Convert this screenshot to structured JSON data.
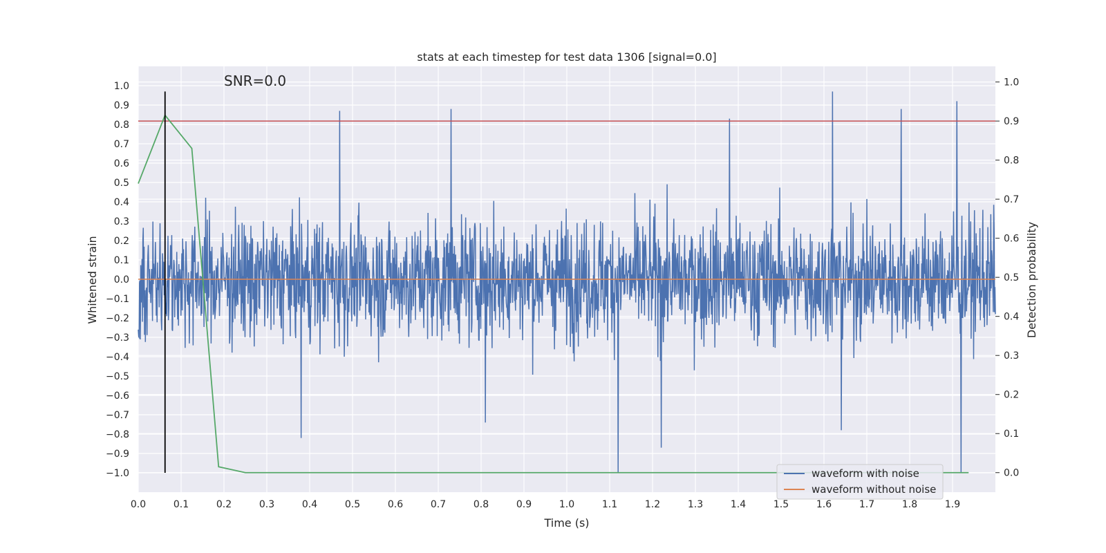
{
  "chart_data": {
    "type": "line",
    "title": "stats at each timestep for test data 1306 [signal=0.0]",
    "xlabel": "Time (s)",
    "ylabel": "Whitened strain",
    "y2label": "Detection probability",
    "annotation": "SNR=0.0",
    "xlim": [
      0.0,
      2.0
    ],
    "ylim": [
      -1.1,
      1.1
    ],
    "y2lim": [
      -0.05,
      1.04
    ],
    "xticks": [
      "0.0",
      "0.1",
      "0.2",
      "0.3",
      "0.4",
      "0.5",
      "0.6",
      "0.7",
      "0.8",
      "0.9",
      "1.0",
      "1.1",
      "1.2",
      "1.3",
      "1.4",
      "1.5",
      "1.6",
      "1.7",
      "1.8",
      "1.9"
    ],
    "yticks": [
      "1.0",
      "0.9",
      "0.8",
      "0.7",
      "0.6",
      "0.5",
      "0.4",
      "0.3",
      "0.2",
      "0.1",
      "0.0",
      "−0.1",
      "−0.2",
      "−0.3",
      "−0.4",
      "−0.5",
      "−0.6",
      "−0.7",
      "−0.8",
      "−0.9",
      "−1.0"
    ],
    "y2ticks": [
      "1.0",
      "0.9",
      "0.8",
      "0.7",
      "0.6",
      "0.5",
      "0.4",
      "0.3",
      "0.2",
      "0.1",
      "0.0"
    ],
    "grid": true,
    "legend_position": "bottom-right",
    "series": [
      {
        "name": "waveform with noise",
        "axis": "left",
        "color": "#4c72b0",
        "kind": "noise",
        "sample_count": 2048,
        "x_range": [
          0.0,
          2.0
        ],
        "peaks": [
          {
            "x": 0.47,
            "y": 0.87
          },
          {
            "x": 0.73,
            "y": 0.88
          },
          {
            "x": 1.38,
            "y": 0.83
          },
          {
            "x": 1.62,
            "y": 0.97
          },
          {
            "x": 1.78,
            "y": 0.88
          },
          {
            "x": 1.91,
            "y": 0.92
          },
          {
            "x": 0.38,
            "y": -0.82
          },
          {
            "x": 0.81,
            "y": -0.74
          },
          {
            "x": 1.12,
            "y": -1.0
          },
          {
            "x": 1.22,
            "y": -0.87
          },
          {
            "x": 1.64,
            "y": -0.78
          },
          {
            "x": 1.92,
            "y": -1.0
          }
        ]
      },
      {
        "name": "waveform without noise",
        "axis": "left",
        "color": "#dd8452",
        "x": [
          0.0,
          2.0
        ],
        "y": [
          0.0,
          0.0
        ]
      },
      {
        "axis": "right",
        "color": "#55a868",
        "x": [
          0.0,
          0.0625,
          0.125,
          0.1875,
          0.25,
          0.5,
          1.0,
          1.5,
          1.9375
        ],
        "y": [
          0.74,
          0.915,
          0.83,
          0.015,
          0.0,
          0.0,
          0.0,
          0.0,
          0.0
        ]
      }
    ],
    "threshold": {
      "axis": "right",
      "value": 0.9,
      "color": "#c44e52"
    },
    "marker": {
      "x": 0.0625,
      "y_from": -1.0,
      "y_to": 0.97,
      "color": "#000000"
    }
  }
}
